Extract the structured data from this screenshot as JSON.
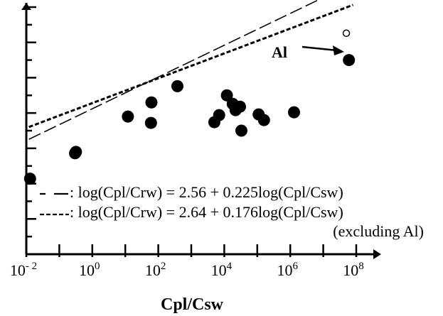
{
  "chart_data": {
    "type": "scatter",
    "x_scale": "log",
    "xlabel": "Cpl/Csw",
    "ylabel": "",
    "xlim": [
      0.01,
      100000000
    ],
    "ylim": [
      -0.25,
      3.25
    ],
    "x_ticks": [
      {
        "value": 0.01,
        "base": "10",
        "exp": "- 2"
      },
      {
        "value": 1,
        "base": "10",
        "exp": "0"
      },
      {
        "value": 100,
        "base": "10",
        "exp": "2"
      },
      {
        "value": 10000,
        "base": "10",
        "exp": "4"
      },
      {
        "value": 1000000,
        "base": "10",
        "exp": "6"
      },
      {
        "value": 100000000,
        "base": "10",
        "exp": "8"
      }
    ],
    "points": [
      {
        "x": 0.013,
        "y": 0.82
      },
      {
        "x": 0.3,
        "y": 1.18
      },
      {
        "x": 0.32,
        "y": 1.2
      },
      {
        "x": 12,
        "y": 1.7
      },
      {
        "x": 60,
        "y": 1.61
      },
      {
        "x": 62,
        "y": 1.9
      },
      {
        "x": 380,
        "y": 2.13
      },
      {
        "x": 5000,
        "y": 1.62
      },
      {
        "x": 7000,
        "y": 1.72
      },
      {
        "x": 12000,
        "y": 2.0
      },
      {
        "x": 18000,
        "y": 1.88
      },
      {
        "x": 22000,
        "y": 1.79
      },
      {
        "x": 30000,
        "y": 1.84
      },
      {
        "x": 33000,
        "y": 1.5
      },
      {
        "x": 110000,
        "y": 1.73
      },
      {
        "x": 160000,
        "y": 1.65
      },
      {
        "x": 1300000,
        "y": 1.76
      },
      {
        "x": 60000000,
        "y": 2.5
      }
    ],
    "open_point": {
      "x": 50000000,
      "y": 2.88,
      "label": "Al"
    },
    "fits": [
      {
        "label": ": log(Cpl/Crw) = 2.56 + 0.225log(Cpl/Csw)",
        "intercept": 2.56,
        "slope": 0.225,
        "style": "long-dash"
      },
      {
        "label": ": log(Cpl/Crw) = 2.64 + 0.176log(Cpl/Csw)",
        "intercept": 2.64,
        "slope": 0.176,
        "style": "short-dash",
        "note": "(excluding Al)"
      }
    ],
    "grid": false,
    "legend_position": "bottom-right"
  }
}
